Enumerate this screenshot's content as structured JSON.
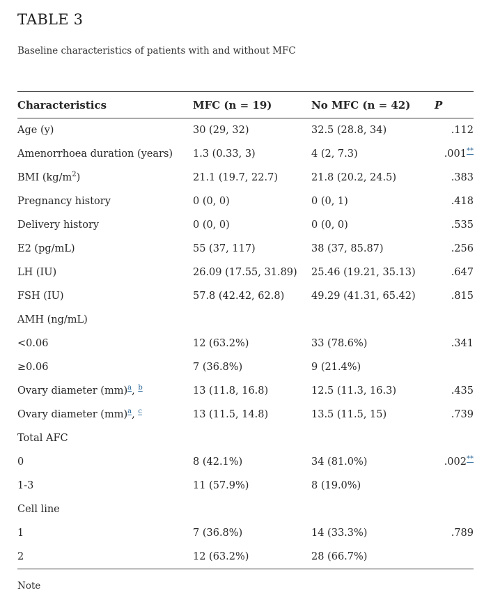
{
  "page": {
    "title": "TABLE 3",
    "subtitle": "Baseline characteristics of patients with and without MFC",
    "note": "Note"
  },
  "colors": {
    "text": "#262626",
    "border": "#3d3d3d",
    "footnote_link": "#2f6b9d",
    "background": "#ffffff"
  },
  "table": {
    "headers": {
      "characteristics": "Characteristics",
      "mfc": "MFC (n = 19)",
      "no_mfc": "No MFC (n = 42)",
      "p": "P"
    },
    "sep": ", ",
    "rows": [
      {
        "label": "Age (y)",
        "mfc": "30 (29, 32)",
        "no_mfc": "32.5 (28.8, 34)",
        "p": ".112"
      },
      {
        "label": "Amenorrhoea duration (years)",
        "mfc": "1.3 (0.33, 3)",
        "no_mfc": "4 (2, 7.3)",
        "p": ".001",
        "p_sup": "**"
      },
      {
        "label": "BMI (kg/m",
        "label_sup": "2",
        "label_close": ")",
        "mfc": "21.1 (19.7, 22.7)",
        "no_mfc": "21.8 (20.2, 24.5)",
        "p": ".383"
      },
      {
        "label": "Pregnancy history",
        "mfc": "0 (0, 0)",
        "no_mfc": "0 (0, 1)",
        "p": ".418"
      },
      {
        "label": "Delivery history",
        "mfc": "0 (0, 0)",
        "no_mfc": "0 (0, 0)",
        "p": ".535"
      },
      {
        "label": "E2 (pg/mL)",
        "mfc": "55 (37, 117)",
        "no_mfc": "38 (37, 85.87)",
        "p": ".256"
      },
      {
        "label": "LH (IU)",
        "mfc": "26.09 (17.55, 31.89)",
        "no_mfc": "25.46 (19.21, 35.13)",
        "p": ".647"
      },
      {
        "label": "FSH (IU)",
        "mfc": "57.8 (42.42, 62.8)",
        "no_mfc": "49.29 (41.31, 65.42)",
        "p": ".815"
      },
      {
        "label": "AMH (ng/mL)"
      },
      {
        "label": "<0.06",
        "mfc": "12 (63.2%)",
        "no_mfc": "33 (78.6%)",
        "p": ".341"
      },
      {
        "label": "≥0.06",
        "mfc": "7 (36.8%)",
        "no_mfc": "9 (21.4%)"
      },
      {
        "label": "Ovary diameter (mm)",
        "label_links": [
          "a",
          "b"
        ],
        "mfc": "13 (11.8, 16.8)",
        "no_mfc": "12.5 (11.3, 16.3)",
        "p": ".435"
      },
      {
        "label": "Ovary diameter (mm)",
        "label_links": [
          "a",
          "c"
        ],
        "mfc": "13 (11.5, 14.8)",
        "no_mfc": "13.5 (11.5, 15)",
        "p": ".739"
      },
      {
        "label": "Total AFC"
      },
      {
        "label": "0",
        "mfc": "8 (42.1%)",
        "no_mfc": "34 (81.0%)",
        "p": ".002",
        "p_sup": "**"
      },
      {
        "label": "1-3",
        "mfc": "11 (57.9%)",
        "no_mfc": "8 (19.0%)"
      },
      {
        "label": "Cell line"
      },
      {
        "label": "1",
        "mfc": "7 (36.8%)",
        "no_mfc": "14 (33.3%)",
        "p": ".789"
      },
      {
        "label": "2",
        "mfc": "12 (63.2%)",
        "no_mfc": "28 (66.7%)"
      }
    ]
  }
}
